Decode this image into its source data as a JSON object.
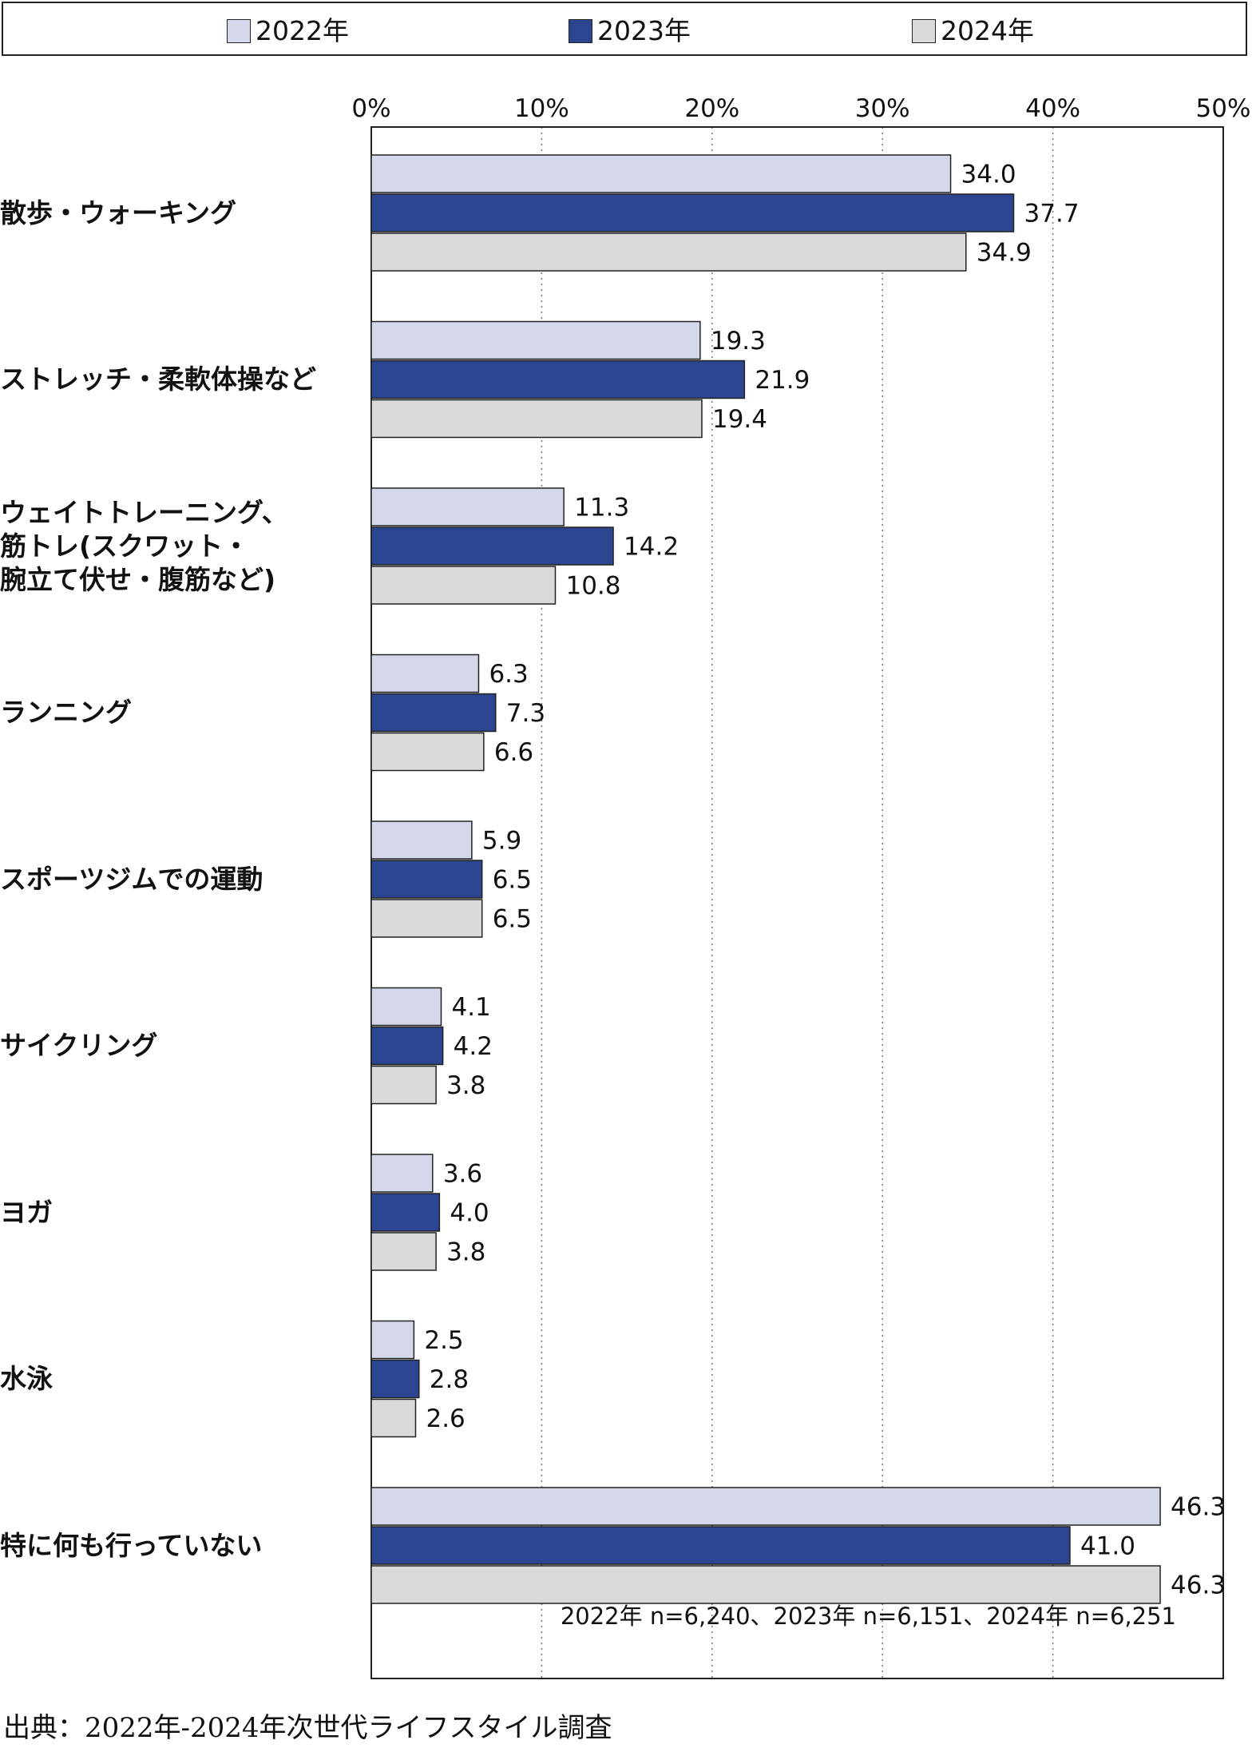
{
  "chart_data": {
    "type": "bar",
    "orientation": "horizontal",
    "categories": [
      "散歩・ウォーキング",
      "ストレッチ・柔軟体操など",
      "ウェイトトレーニング、\n筋トレ(スクワット・\n腕立て伏せ・腹筋など)",
      "ランニング",
      "スポーツジムでの運動",
      "サイクリング",
      "ヨガ",
      "水泳",
      "特に何も行っていない"
    ],
    "series": [
      {
        "name": "2022年",
        "color": "#d5d8ea",
        "values": [
          34.0,
          19.3,
          11.3,
          6.3,
          5.9,
          4.1,
          3.6,
          2.5,
          46.3
        ]
      },
      {
        "name": "2023年",
        "color": "#2c4591",
        "values": [
          37.7,
          21.9,
          14.2,
          7.3,
          6.5,
          4.2,
          4.0,
          2.8,
          41.0
        ]
      },
      {
        "name": "2024年",
        "color": "#dadada",
        "values": [
          34.9,
          19.4,
          10.8,
          6.6,
          6.5,
          3.8,
          3.8,
          2.6,
          46.3
        ]
      }
    ],
    "value_labels": [
      [
        "34.0",
        "19.3",
        "11.3",
        "6.3",
        "5.9",
        "4.1",
        "3.6",
        "2.5",
        "46.3"
      ],
      [
        "37.7",
        "21.9",
        "14.2",
        "7.3",
        "6.5",
        "4.2",
        "4.0",
        "2.8",
        "41.0"
      ],
      [
        "34.9",
        "19.4",
        "10.8",
        "6.6",
        "6.5",
        "3.8",
        "3.8",
        "2.6",
        "46.3"
      ]
    ],
    "xlim": [
      0,
      50
    ],
    "x_ticks": [
      "0%",
      "10%",
      "20%",
      "30%",
      "40%",
      "50%"
    ],
    "grid": "vertical dotted",
    "legend_position": "top"
  },
  "note": "2022年 n=6,240、2023年 n=6,151、2024年 n=6,251",
  "source": "出典：2022年-2024年次世代ライフスタイル調査"
}
